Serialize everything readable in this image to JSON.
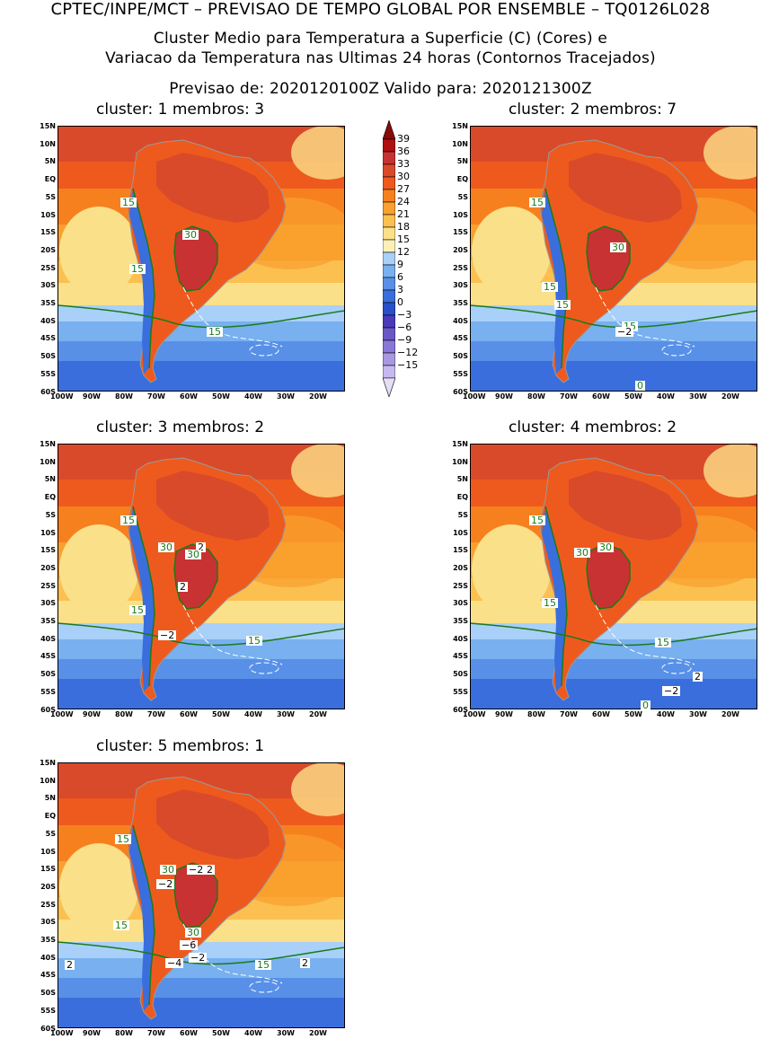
{
  "header": {
    "line1": "CPTEC/INPE/MCT – PREVISAO DE TEMPO GLOBAL POR ENSEMBLE – TQ0126L028",
    "line2": "Cluster Medio para Temperatura a Superficie (C) (Cores) e",
    "line3": "Variacao da Temperatura nas Ultimas 24 horas (Contornos Tracejados)",
    "line4": "Previsao de: 2020120100Z    Valido para: 2020121300Z"
  },
  "lat_labels": [
    "15N",
    "10N",
    "5N",
    "EQ",
    "5S",
    "10S",
    "15S",
    "20S",
    "25S",
    "30S",
    "35S",
    "40S",
    "45S",
    "50S",
    "55S",
    "60S"
  ],
  "lon_labels": [
    "100W",
    "90W",
    "80W",
    "70W",
    "60W",
    "50W",
    "40W",
    "30W",
    "20W"
  ],
  "colorbar": {
    "labels": [
      "39",
      "36",
      "33",
      "30",
      "27",
      "24",
      "21",
      "18",
      "15",
      "12",
      "9",
      "6",
      "3",
      "0",
      "−3",
      "−6",
      "−9",
      "−12",
      "−15"
    ],
    "colors": [
      "#8a0a0a",
      "#b01010",
      "#c83232",
      "#d94a2a",
      "#ee5a1e",
      "#f7801e",
      "#f9a02e",
      "#fbc050",
      "#fbe08a",
      "#fbf0b8",
      "#a8d0f8",
      "#78b0f0",
      "#5890e8",
      "#3a6edc",
      "#2850c8",
      "#4a3ab8",
      "#6a58c8",
      "#8a78d8",
      "#a898e0",
      "#c8b8f0",
      "#e6def8"
    ]
  },
  "clusters": [
    {
      "title": "cluster: 1   membros: 3",
      "labels": [
        "15",
        "30",
        "15",
        "15"
      ]
    },
    {
      "title": "cluster: 2   membros: 7",
      "labels": [
        "15",
        "30",
        "15",
        "15",
        "15",
        "−2",
        "0"
      ]
    },
    {
      "title": "cluster: 3   membros: 2",
      "labels": [
        "15",
        "30",
        "2",
        "30",
        "2",
        "15",
        "−2",
        "15"
      ]
    },
    {
      "title": "cluster: 4   membros: 2",
      "labels": [
        "15",
        "30",
        "30",
        "15",
        "15",
        "2",
        "−2",
        "0"
      ]
    },
    {
      "title": "cluster: 5   membros: 1",
      "labels": [
        "15",
        "30",
        "−2",
        "2",
        "−2",
        "15",
        "30",
        "−6",
        "−2",
        "−4",
        "2",
        "15",
        "2"
      ]
    }
  ]
}
